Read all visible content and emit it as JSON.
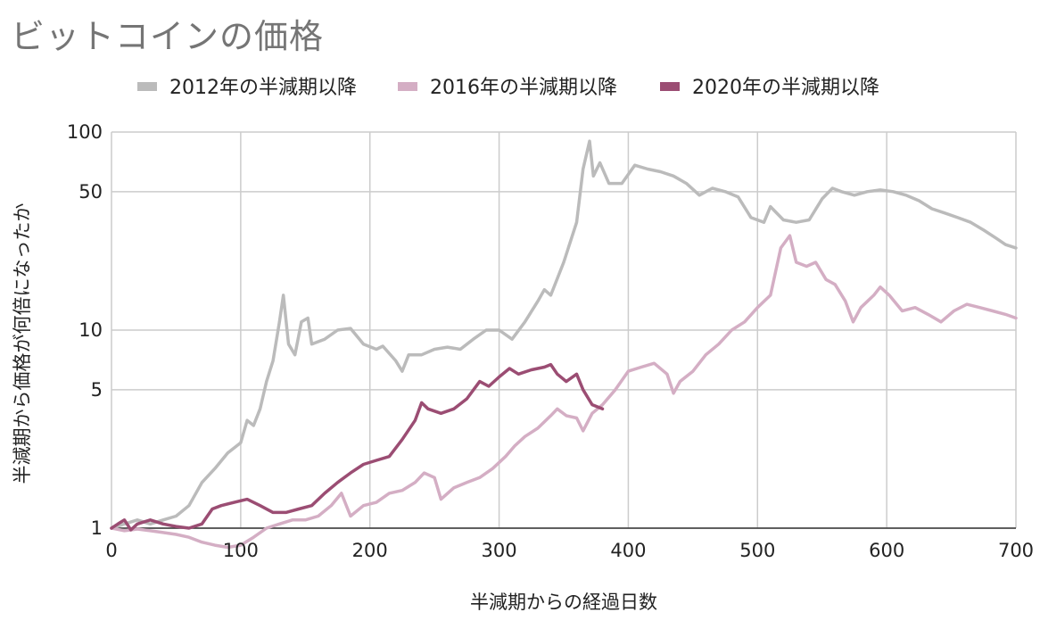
{
  "title": "ビットコインの価格",
  "chart_data": {
    "type": "line",
    "title": "ビットコインの価格",
    "xlabel": "半減期からの経過日数",
    "ylabel": "半減期から価格が何倍になったか",
    "xlim": [
      0,
      700
    ],
    "ylim": [
      1,
      100
    ],
    "yscale": "log",
    "grid": true,
    "legend_position": "top",
    "x_ticks": [
      0,
      100,
      200,
      300,
      400,
      500,
      600,
      700
    ],
    "y_ticks": [
      1,
      5,
      10,
      50,
      100
    ],
    "series": [
      {
        "name": "2012年の半減期以降",
        "color": "#bbbbbb",
        "points": [
          [
            0,
            1.0
          ],
          [
            10,
            1.05
          ],
          [
            20,
            1.1
          ],
          [
            30,
            1.05
          ],
          [
            40,
            1.1
          ],
          [
            50,
            1.15
          ],
          [
            60,
            1.3
          ],
          [
            70,
            1.7
          ],
          [
            80,
            2.0
          ],
          [
            90,
            2.4
          ],
          [
            100,
            2.7
          ],
          [
            105,
            3.5
          ],
          [
            110,
            3.3
          ],
          [
            115,
            4.0
          ],
          [
            120,
            5.5
          ],
          [
            125,
            7.0
          ],
          [
            130,
            11.0
          ],
          [
            133,
            15.0
          ],
          [
            137,
            8.5
          ],
          [
            142,
            7.5
          ],
          [
            147,
            11.0
          ],
          [
            152,
            11.5
          ],
          [
            155,
            8.5
          ],
          [
            165,
            9.0
          ],
          [
            175,
            10.0
          ],
          [
            185,
            10.2
          ],
          [
            195,
            8.5
          ],
          [
            205,
            8.0
          ],
          [
            210,
            8.3
          ],
          [
            220,
            7.0
          ],
          [
            225,
            6.2
          ],
          [
            230,
            7.5
          ],
          [
            240,
            7.5
          ],
          [
            250,
            8.0
          ],
          [
            260,
            8.2
          ],
          [
            270,
            8.0
          ],
          [
            280,
            9.0
          ],
          [
            290,
            10.0
          ],
          [
            300,
            10.0
          ],
          [
            310,
            9.0
          ],
          [
            320,
            11.0
          ],
          [
            330,
            14.0
          ],
          [
            335,
            16.0
          ],
          [
            340,
            15.0
          ],
          [
            350,
            22.0
          ],
          [
            360,
            35.0
          ],
          [
            365,
            65.0
          ],
          [
            370,
            90.0
          ],
          [
            373,
            60.0
          ],
          [
            378,
            70.0
          ],
          [
            385,
            55.0
          ],
          [
            395,
            55.0
          ],
          [
            405,
            68.0
          ],
          [
            415,
            65.0
          ],
          [
            425,
            63.0
          ],
          [
            435,
            60.0
          ],
          [
            445,
            55.0
          ],
          [
            455,
            48.0
          ],
          [
            465,
            52.0
          ],
          [
            475,
            50.0
          ],
          [
            485,
            47.0
          ],
          [
            495,
            37.0
          ],
          [
            505,
            35.0
          ],
          [
            510,
            42.0
          ],
          [
            520,
            36.0
          ],
          [
            530,
            35.0
          ],
          [
            540,
            36.0
          ],
          [
            550,
            46.0
          ],
          [
            558,
            52.0
          ],
          [
            565,
            50.0
          ],
          [
            575,
            48.0
          ],
          [
            585,
            50.0
          ],
          [
            595,
            51.0
          ],
          [
            605,
            50.0
          ],
          [
            615,
            48.0
          ],
          [
            625,
            45.0
          ],
          [
            635,
            41.0
          ],
          [
            645,
            39.0
          ],
          [
            655,
            37.0
          ],
          [
            665,
            35.0
          ],
          [
            675,
            32.0
          ],
          [
            685,
            29.0
          ],
          [
            692,
            27.0
          ],
          [
            700,
            26.0
          ]
        ]
      },
      {
        "name": "2016年の半減期以降",
        "color": "#d4aec4",
        "points": [
          [
            0,
            1.0
          ],
          [
            10,
            0.97
          ],
          [
            20,
            0.99
          ],
          [
            30,
            0.97
          ],
          [
            40,
            0.95
          ],
          [
            50,
            0.93
          ],
          [
            60,
            0.9
          ],
          [
            70,
            0.85
          ],
          [
            80,
            0.82
          ],
          [
            90,
            0.8
          ],
          [
            100,
            0.82
          ],
          [
            110,
            0.9
          ],
          [
            120,
            1.0
          ],
          [
            130,
            1.05
          ],
          [
            140,
            1.1
          ],
          [
            150,
            1.1
          ],
          [
            160,
            1.15
          ],
          [
            170,
            1.3
          ],
          [
            178,
            1.5
          ],
          [
            185,
            1.15
          ],
          [
            195,
            1.3
          ],
          [
            205,
            1.35
          ],
          [
            215,
            1.5
          ],
          [
            225,
            1.55
          ],
          [
            235,
            1.7
          ],
          [
            242,
            1.9
          ],
          [
            250,
            1.8
          ],
          [
            255,
            1.4
          ],
          [
            265,
            1.6
          ],
          [
            275,
            1.7
          ],
          [
            285,
            1.8
          ],
          [
            295,
            2.0
          ],
          [
            305,
            2.3
          ],
          [
            312,
            2.6
          ],
          [
            320,
            2.9
          ],
          [
            330,
            3.2
          ],
          [
            340,
            3.7
          ],
          [
            345,
            4.0
          ],
          [
            352,
            3.7
          ],
          [
            360,
            3.6
          ],
          [
            365,
            3.1
          ],
          [
            372,
            3.8
          ],
          [
            380,
            4.2
          ],
          [
            390,
            5.0
          ],
          [
            400,
            6.2
          ],
          [
            410,
            6.5
          ],
          [
            420,
            6.8
          ],
          [
            430,
            6.0
          ],
          [
            435,
            4.8
          ],
          [
            440,
            5.5
          ],
          [
            450,
            6.2
          ],
          [
            460,
            7.5
          ],
          [
            470,
            8.5
          ],
          [
            480,
            10.0
          ],
          [
            490,
            11.0
          ],
          [
            500,
            13.0
          ],
          [
            510,
            15.0
          ],
          [
            518,
            26.0
          ],
          [
            525,
            30.0
          ],
          [
            530,
            22.0
          ],
          [
            538,
            21.0
          ],
          [
            545,
            22.0
          ],
          [
            553,
            18.0
          ],
          [
            560,
            17.0
          ],
          [
            568,
            14.0
          ],
          [
            574,
            11.0
          ],
          [
            580,
            13.0
          ],
          [
            590,
            15.0
          ],
          [
            595,
            16.5
          ],
          [
            602,
            15.0
          ],
          [
            612,
            12.5
          ],
          [
            622,
            13.0
          ],
          [
            632,
            12.0
          ],
          [
            642,
            11.0
          ],
          [
            652,
            12.5
          ],
          [
            662,
            13.5
          ],
          [
            672,
            13.0
          ],
          [
            682,
            12.5
          ],
          [
            692,
            12.0
          ],
          [
            700,
            11.5
          ]
        ]
      },
      {
        "name": "2020年の半減期以降",
        "color": "#9b4d73",
        "points": [
          [
            0,
            1.0
          ],
          [
            5,
            1.05
          ],
          [
            10,
            1.1
          ],
          [
            15,
            0.98
          ],
          [
            20,
            1.05
          ],
          [
            30,
            1.1
          ],
          [
            40,
            1.05
          ],
          [
            50,
            1.02
          ],
          [
            60,
            1.0
          ],
          [
            70,
            1.05
          ],
          [
            78,
            1.25
          ],
          [
            85,
            1.3
          ],
          [
            95,
            1.35
          ],
          [
            105,
            1.4
          ],
          [
            115,
            1.3
          ],
          [
            125,
            1.2
          ],
          [
            135,
            1.2
          ],
          [
            145,
            1.25
          ],
          [
            155,
            1.3
          ],
          [
            165,
            1.5
          ],
          [
            175,
            1.7
          ],
          [
            185,
            1.9
          ],
          [
            195,
            2.1
          ],
          [
            205,
            2.2
          ],
          [
            215,
            2.3
          ],
          [
            225,
            2.8
          ],
          [
            235,
            3.5
          ],
          [
            240,
            4.3
          ],
          [
            245,
            4.0
          ],
          [
            255,
            3.8
          ],
          [
            265,
            4.0
          ],
          [
            275,
            4.5
          ],
          [
            285,
            5.5
          ],
          [
            292,
            5.2
          ],
          [
            300,
            5.8
          ],
          [
            308,
            6.4
          ],
          [
            315,
            6.0
          ],
          [
            325,
            6.3
          ],
          [
            335,
            6.5
          ],
          [
            340,
            6.7
          ],
          [
            345,
            6.0
          ],
          [
            352,
            5.5
          ],
          [
            360,
            6.0
          ],
          [
            365,
            5.0
          ],
          [
            372,
            4.2
          ],
          [
            380,
            4.0
          ]
        ]
      }
    ]
  }
}
